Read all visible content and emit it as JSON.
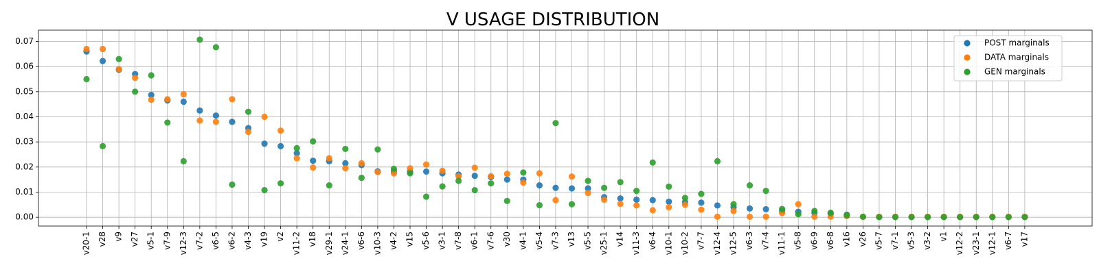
{
  "chart_data": {
    "type": "scatter",
    "title": "V USAGE DISTRIBUTION",
    "xlabel": "",
    "ylabel": "",
    "ylim": [
      -0.0035,
      0.0745
    ],
    "yticks": [
      0.0,
      0.01,
      0.02,
      0.03,
      0.04,
      0.05,
      0.06,
      0.07
    ],
    "grid": true,
    "legend_position": "top-right",
    "categories": [
      "v20-1",
      "v28",
      "v9",
      "v27",
      "v5-1",
      "v7-9",
      "v12-3",
      "v7-2",
      "v6-5",
      "v6-2",
      "v4-3",
      "v19",
      "v2",
      "v11-2",
      "v18",
      "v29-1",
      "v24-1",
      "v6-6",
      "v10-3",
      "v4-2",
      "v15",
      "v5-6",
      "v3-1",
      "v7-8",
      "v6-1",
      "v7-6",
      "v30",
      "v4-1",
      "v5-4",
      "v7-3",
      "v13",
      "v5-5",
      "v25-1",
      "v14",
      "v11-3",
      "v6-4",
      "v10-1",
      "v10-2",
      "v7-7",
      "v12-4",
      "v12-5",
      "v6-3",
      "v7-4",
      "v11-1",
      "v5-8",
      "v6-9",
      "v6-8",
      "v16",
      "v26",
      "v5-7",
      "v7-1",
      "v5-3",
      "v3-2",
      "v1",
      "v12-2",
      "v23-1",
      "v12-1",
      "v6-7",
      "v17"
    ],
    "series": [
      {
        "name": "POST marginals",
        "color": "#1f77b4",
        "values": [
          0.066,
          0.0622,
          0.0587,
          0.057,
          0.0487,
          0.0465,
          0.046,
          0.0425,
          0.0405,
          0.038,
          0.0355,
          0.0293,
          0.0283,
          0.0255,
          0.0225,
          0.0223,
          0.0215,
          0.0208,
          0.0183,
          0.0182,
          0.0182,
          0.0182,
          0.0175,
          0.017,
          0.0165,
          0.016,
          0.015,
          0.015,
          0.0127,
          0.0117,
          0.0115,
          0.0115,
          0.008,
          0.0075,
          0.007,
          0.0068,
          0.0062,
          0.006,
          0.0058,
          0.0047,
          0.004,
          0.0035,
          0.0032,
          0.0025,
          0.0022,
          0.0017,
          0.0014,
          0.001,
          0.0002,
          0.0001,
          0.0001,
          0.0001,
          0.0001,
          0.0001,
          0.0001,
          0.0001,
          0.0001,
          0.0001,
          0.0001
        ]
      },
      {
        "name": "DATA marginals",
        "color": "#ff7f0e",
        "values": [
          0.067,
          0.067,
          0.059,
          0.0555,
          0.0468,
          0.047,
          0.049,
          0.0385,
          0.038,
          0.047,
          0.034,
          0.04,
          0.0345,
          0.0235,
          0.0198,
          0.0235,
          0.0195,
          0.0215,
          0.018,
          0.0175,
          0.0195,
          0.021,
          0.0185,
          0.0163,
          0.0197,
          0.0163,
          0.0173,
          0.0138,
          0.0175,
          0.0068,
          0.0162,
          0.0097,
          0.007,
          0.0053,
          0.0047,
          0.0028,
          0.004,
          0.005,
          0.003,
          0.0002,
          0.0025,
          0.0002,
          0.0002,
          0.0017,
          0.0052,
          0.0002,
          0.0002,
          0.0005,
          0.0002,
          0.0002,
          0.0002,
          0.0002,
          0.0002,
          0.0002,
          0.0002,
          0.0002,
          0.0002,
          0.0002,
          0.0002
        ]
      },
      {
        "name": "GEN marginals",
        "color": "#2ca02c",
        "values": [
          0.055,
          0.0283,
          0.063,
          0.05,
          0.0565,
          0.0377,
          0.0223,
          0.0707,
          0.0677,
          0.013,
          0.042,
          0.0108,
          0.0135,
          0.0275,
          0.0302,
          0.0127,
          0.0272,
          0.0157,
          0.027,
          0.0193,
          0.0175,
          0.0082,
          0.0123,
          0.0145,
          0.0108,
          0.0135,
          0.0065,
          0.0178,
          0.0048,
          0.0375,
          0.0052,
          0.0145,
          0.0117,
          0.014,
          0.0105,
          0.0218,
          0.0122,
          0.0077,
          0.0093,
          0.0223,
          0.0052,
          0.0127,
          0.0105,
          0.0033,
          0.0012,
          0.0025,
          0.0018,
          0.0008,
          0.0002,
          0.0001,
          0.0001,
          0.0001,
          0.0001,
          0.0001,
          0.0001,
          0.0001,
          0.0001,
          0.0001,
          0.0001
        ]
      }
    ]
  }
}
